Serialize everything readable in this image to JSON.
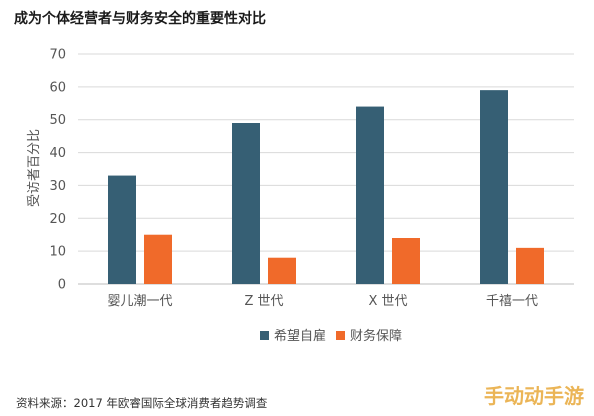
{
  "chart_data": {
    "type": "bar",
    "title": "成为个体经营者与财务安全的重要性对比",
    "ylabel": "受访者百分比",
    "xlabel": "",
    "ylim": [
      0,
      70
    ],
    "yticks": [
      0,
      10,
      20,
      30,
      40,
      50,
      60,
      70
    ],
    "grid": true,
    "legend_position": "bottom-center",
    "categories": [
      "婴儿潮一代",
      "Z 世代",
      "X 世代",
      "千禧一代"
    ],
    "series": [
      {
        "name": "希望自雇",
        "color": "#365f74",
        "values": [
          33,
          49,
          54,
          59
        ]
      },
      {
        "name": "财务保障",
        "color": "#f06a2a",
        "values": [
          15,
          8,
          14,
          11
        ]
      }
    ]
  },
  "source": "资料来源：2017 年欧睿国际全球消费者趋势调查",
  "watermark": "手动动手游"
}
